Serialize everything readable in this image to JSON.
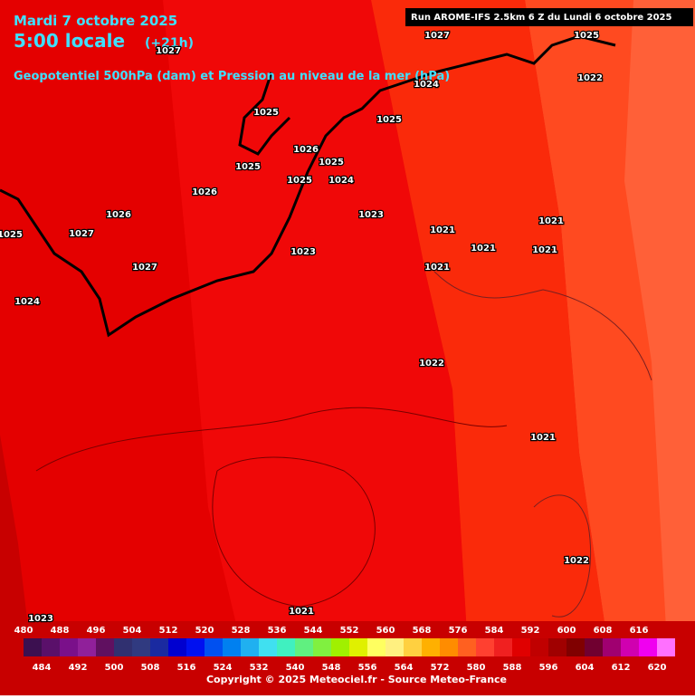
{
  "header": {
    "date": "Mardi 7 octobre 2025",
    "time": "5:00 locale",
    "lead": "(+21h)",
    "subtitle": "Geopotentiel 500hPa (dam) et Pression au niveau de la mer (hPa)",
    "run": "Run AROME-IFS 2.5km 6 Z du Lundi 6 octobre 2025"
  },
  "pressure_labels": [
    1027,
    1025,
    1027,
    1024,
    1022,
    1025,
    1025,
    1026,
    1025,
    1025,
    1026,
    1025,
    1024,
    1026,
    1023,
    1021,
    1025,
    1027,
    1021,
    1021,
    1021,
    1023,
    1027,
    1021,
    1024,
    1022,
    1021,
    1022,
    1021,
    1023
  ],
  "colorbar": {
    "levels": [
      480,
      484,
      488,
      492,
      496,
      500,
      504,
      508,
      512,
      516,
      520,
      524,
      528,
      532,
      536,
      540,
      544,
      548,
      552,
      556,
      560,
      564,
      568,
      572,
      576,
      580,
      584,
      588,
      592,
      596,
      600,
      604,
      608,
      612,
      616,
      620
    ],
    "colors": [
      "#3c1050",
      "#5a106a",
      "#7a108a",
      "#90209a",
      "#601060",
      "#303070",
      "#303a80",
      "#1a2aa0",
      "#0000d0",
      "#0010f0",
      "#0050f0",
      "#0080f0",
      "#20b0f0",
      "#40e0f0",
      "#40f0c0",
      "#60f080",
      "#80f040",
      "#a0f000",
      "#e0f000",
      "#ffff60",
      "#fff080",
      "#ffd040",
      "#ffb000",
      "#ff8c00",
      "#ff6020",
      "#ff4030",
      "#f02020",
      "#e00000",
      "#c00000",
      "#a00000",
      "#800000",
      "#700030",
      "#a00070",
      "#d000b0",
      "#f000f0",
      "#ff70ff"
    ]
  },
  "footer": {
    "copyright": "Copyright © 2025 Meteociel.fr - Source Meteo-France"
  }
}
